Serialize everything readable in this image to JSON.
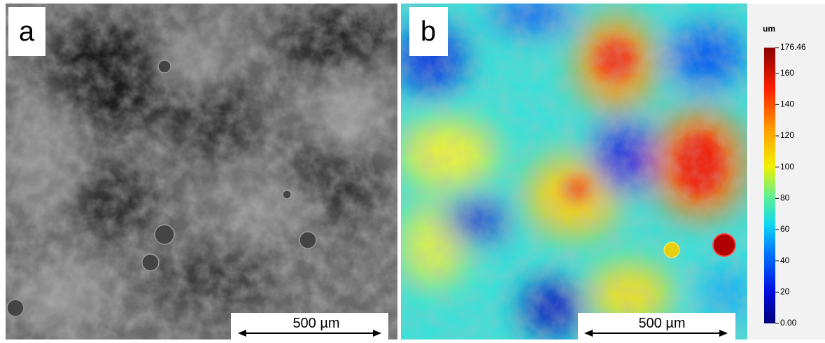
{
  "panels": [
    {
      "label": "a",
      "scale_bar": "500 µm"
    },
    {
      "label": "b",
      "scale_bar": "500 µm"
    }
  ],
  "colorbar": {
    "unit": "um",
    "range": [
      0,
      176.46
    ],
    "ticks": [
      {
        "value": 0,
        "label": "0.00"
      },
      20,
      40,
      60,
      80,
      100,
      120,
      140,
      160,
      176.46
    ]
  }
}
